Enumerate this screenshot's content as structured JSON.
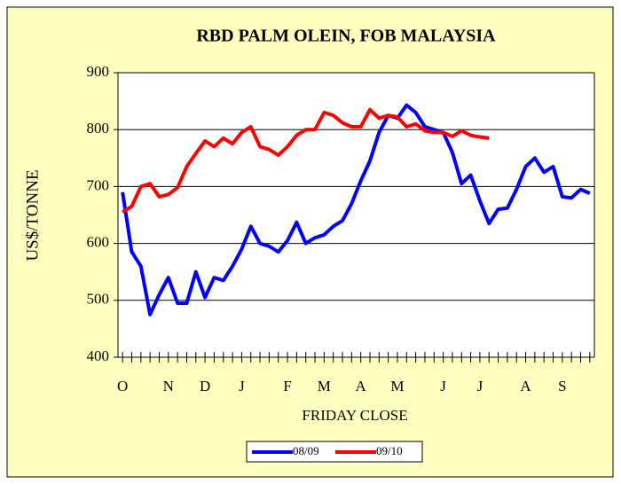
{
  "chart_data": {
    "type": "line",
    "title": "RBD PALM OLEIN, FOB MALAYSIA",
    "x_label": "FRIDAY CLOSE",
    "y_label": "US$/TONNE",
    "categories": [
      "O",
      null,
      null,
      null,
      null,
      "N",
      null,
      null,
      null,
      "D",
      null,
      null,
      null,
      "J",
      null,
      null,
      null,
      null,
      "F",
      null,
      null,
      null,
      "M",
      null,
      null,
      null,
      "A",
      null,
      null,
      null,
      "M",
      null,
      null,
      null,
      null,
      "J",
      null,
      null,
      null,
      "J",
      null,
      null,
      null,
      null,
      "A",
      null,
      null,
      null,
      "S",
      null,
      null,
      null
    ],
    "series": [
      {
        "name": "08/09",
        "color": "#0000ff",
        "values": [
          690,
          585,
          560,
          475,
          510,
          540,
          495,
          495,
          550,
          505,
          540,
          535,
          560,
          590,
          630,
          600,
          595,
          585,
          605,
          637,
          600,
          610,
          615,
          630,
          640,
          670,
          710,
          745,
          795,
          825,
          820,
          843,
          830,
          805,
          800,
          795,
          760,
          705,
          720,
          675,
          635,
          660,
          662,
          695,
          735,
          750,
          725,
          735,
          682,
          680,
          695,
          688
        ]
      },
      {
        "name": "09/10",
        "color": "#ff0000",
        "values": [
          655,
          665,
          700,
          705,
          682,
          686,
          698,
          735,
          758,
          780,
          770,
          785,
          775,
          795,
          805,
          770,
          765,
          755,
          770,
          790,
          800,
          800,
          830,
          825,
          812,
          805,
          805,
          835,
          820,
          825,
          822,
          805,
          810,
          798,
          795,
          795,
          788,
          798,
          790,
          787,
          785,
          null,
          null,
          null,
          null,
          null,
          null,
          null,
          null,
          null,
          null,
          null
        ]
      }
    ],
    "ylim": [
      400,
      900
    ],
    "yticks": [
      400,
      500,
      600,
      700,
      800,
      900
    ],
    "grid": true,
    "legend": "bottom"
  }
}
